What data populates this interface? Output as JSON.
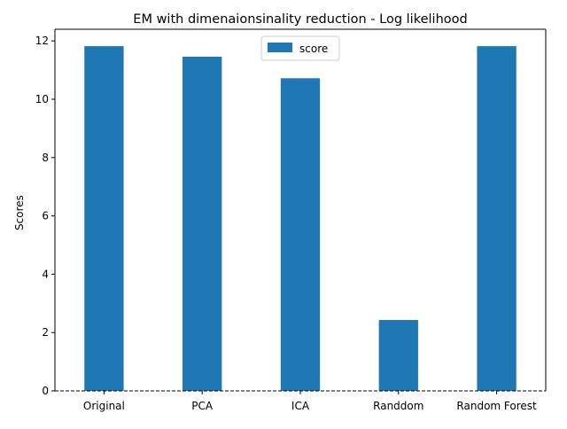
{
  "chart_data": {
    "type": "bar",
    "title": "EM with dimenaionsinality reduction - Log likelihood",
    "xlabel": "",
    "ylabel": "Scores",
    "categories": [
      "Original",
      "PCA",
      "ICA",
      "Randdom",
      "Random Forest"
    ],
    "series": [
      {
        "name": "score",
        "values": [
          11.82,
          11.46,
          10.72,
          2.43,
          11.82
        ]
      }
    ],
    "ylim": [
      0,
      12.4
    ],
    "yticks": [
      0,
      2,
      4,
      6,
      8,
      10,
      12
    ],
    "legend": "top-center",
    "grid": false,
    "bar_color": "#1f77b4",
    "zero_line": "dashed"
  }
}
